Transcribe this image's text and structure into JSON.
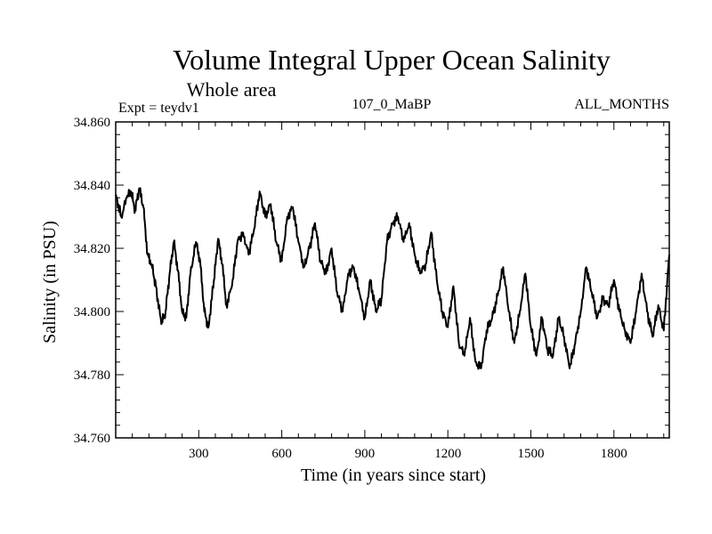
{
  "chart_data": {
    "type": "line",
    "title": "Volume Integral Upper Ocean Salinity",
    "subtitle": "Whole area",
    "annotation_left": "Expt = teydv1",
    "annotation_center": "107_0_MaBP",
    "annotation_right": "ALL_MONTHS",
    "xlabel": "Time (in years since start)",
    "ylabel": "Salinity (in PSU)",
    "xlim": [
      0,
      2000
    ],
    "ylim": [
      34.76,
      34.86
    ],
    "xticks": [
      300,
      600,
      900,
      1200,
      1500,
      1800
    ],
    "xtick_labels": [
      "300",
      "600",
      "900",
      "1200",
      "1500",
      "1800"
    ],
    "yticks": [
      34.76,
      34.78,
      34.8,
      34.82,
      34.84,
      34.86
    ],
    "ytick_labels": [
      "34.760",
      "34.780",
      "34.800",
      "34.820",
      "34.840",
      "34.860"
    ],
    "grid": false,
    "line_color": "#000000",
    "series": [
      {
        "name": "salinity",
        "x": [
          0,
          20,
          40,
          55,
          70,
          85,
          100,
          115,
          130,
          145,
          165,
          180,
          195,
          210,
          225,
          240,
          255,
          270,
          290,
          305,
          320,
          335,
          355,
          370,
          385,
          400,
          420,
          440,
          460,
          480,
          500,
          520,
          540,
          560,
          580,
          600,
          620,
          640,
          660,
          680,
          700,
          720,
          740,
          760,
          780,
          800,
          820,
          840,
          860,
          880,
          900,
          920,
          940,
          960,
          980,
          1000,
          1020,
          1040,
          1060,
          1080,
          1100,
          1120,
          1140,
          1160,
          1180,
          1200,
          1220,
          1240,
          1260,
          1280,
          1300,
          1320,
          1340,
          1360,
          1380,
          1400,
          1420,
          1440,
          1460,
          1480,
          1500,
          1520,
          1540,
          1560,
          1580,
          1600,
          1620,
          1640,
          1660,
          1680,
          1700,
          1720,
          1740,
          1760,
          1780,
          1800,
          1820,
          1840,
          1860,
          1880,
          1900,
          1920,
          1940,
          1960,
          1980,
          2000
        ],
        "y": [
          34.837,
          34.83,
          34.836,
          34.838,
          34.832,
          34.839,
          34.833,
          34.818,
          34.815,
          34.808,
          34.796,
          34.8,
          34.812,
          34.822,
          34.813,
          34.8,
          34.798,
          34.812,
          34.822,
          34.816,
          34.8,
          34.795,
          34.81,
          34.823,
          34.815,
          34.802,
          34.808,
          34.822,
          34.825,
          34.818,
          34.826,
          34.838,
          34.83,
          34.834,
          34.822,
          34.816,
          34.83,
          34.833,
          34.822,
          34.814,
          34.82,
          34.828,
          34.816,
          34.812,
          34.82,
          34.806,
          34.8,
          34.812,
          34.814,
          34.806,
          34.798,
          34.81,
          34.8,
          34.804,
          34.822,
          34.828,
          34.83,
          34.822,
          34.828,
          34.818,
          34.812,
          34.815,
          34.825,
          34.81,
          34.8,
          34.795,
          34.808,
          34.79,
          34.786,
          34.798,
          34.784,
          34.782,
          34.794,
          34.798,
          34.805,
          34.814,
          34.8,
          34.79,
          34.8,
          34.812,
          34.795,
          34.786,
          34.798,
          34.788,
          34.786,
          34.798,
          34.792,
          34.782,
          34.79,
          34.8,
          34.814,
          34.806,
          34.798,
          34.804,
          34.802,
          34.81,
          34.8,
          34.794,
          34.79,
          34.8,
          34.812,
          34.8,
          34.792,
          34.802,
          34.794,
          34.818
        ]
      }
    ]
  }
}
